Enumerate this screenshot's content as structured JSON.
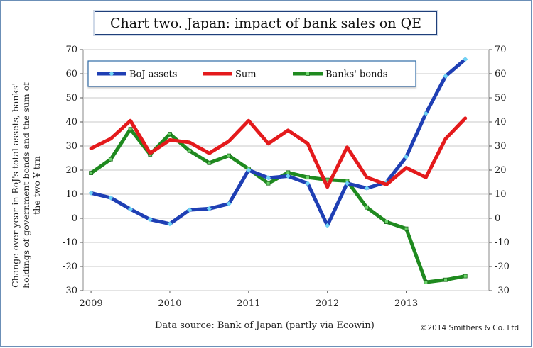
{
  "chart_data": {
    "type": "line",
    "title": "Chart two. Japan: impact of bank sales on QE",
    "ylabel": "Change over year in BoJ's total assets, banks' holdings of government bonds and the sum of the two ¥ trn",
    "xlabel": "",
    "ylim": [
      -30,
      70
    ],
    "yticks": [
      "70",
      "60",
      "50",
      "40",
      "30",
      "20",
      "10",
      "0",
      "-10",
      "-20",
      "-30"
    ],
    "xtick_labels": [
      {
        "label": "2009",
        "x": 2009.0
      },
      {
        "label": "2010",
        "x": 2010.0
      },
      {
        "label": "2011",
        "x": 2011.0
      },
      {
        "label": "2012",
        "x": 2012.0
      },
      {
        "label": "2013",
        "x": 2013.0
      }
    ],
    "xlim": [
      2008.9,
      2014.05
    ],
    "x": [
      2009.0,
      2009.25,
      2009.5,
      2009.75,
      2010.0,
      2010.25,
      2010.5,
      2010.75,
      2011.0,
      2011.25,
      2011.5,
      2011.75,
      2012.0,
      2012.25,
      2012.5,
      2012.75,
      2013.0,
      2013.25,
      2013.5,
      2013.75
    ],
    "series": [
      {
        "name": "BoJ assets",
        "color": "#1f3fb4",
        "marker": "#6fd3f5",
        "values": [
          10.5,
          8.5,
          3.8,
          -0.5,
          -2.3,
          3.5,
          4.0,
          6.0,
          20.0,
          16.8,
          17.5,
          14.5,
          -3.0,
          14.5,
          12.5,
          15.0,
          25.5,
          43.5,
          59.0,
          66.0
        ]
      },
      {
        "name": "Sum",
        "color": "#e41a1c",
        "values": [
          29.0,
          33.0,
          40.5,
          27.0,
          32.5,
          31.5,
          27.0,
          32.0,
          40.5,
          31.0,
          36.5,
          31.0,
          13.0,
          29.5,
          17.0,
          14.0,
          21.0,
          17.0,
          33.0,
          41.5
        ]
      },
      {
        "name": "Banks' bonds",
        "color": "#1f8a1f",
        "marker": "#6ad46a",
        "values": [
          18.8,
          24.5,
          37.0,
          26.5,
          35.0,
          28.0,
          23.0,
          26.0,
          20.5,
          14.5,
          19.0,
          17.0,
          16.0,
          15.5,
          4.5,
          -1.5,
          -4.3,
          -26.5,
          -25.5,
          -24.0
        ]
      }
    ],
    "legend_position": "top-left"
  },
  "footer": {
    "source": "Data source: Bank of Japan (partly via Ecowin)",
    "copyright": "©2014 Smithers & Co. Ltd"
  }
}
